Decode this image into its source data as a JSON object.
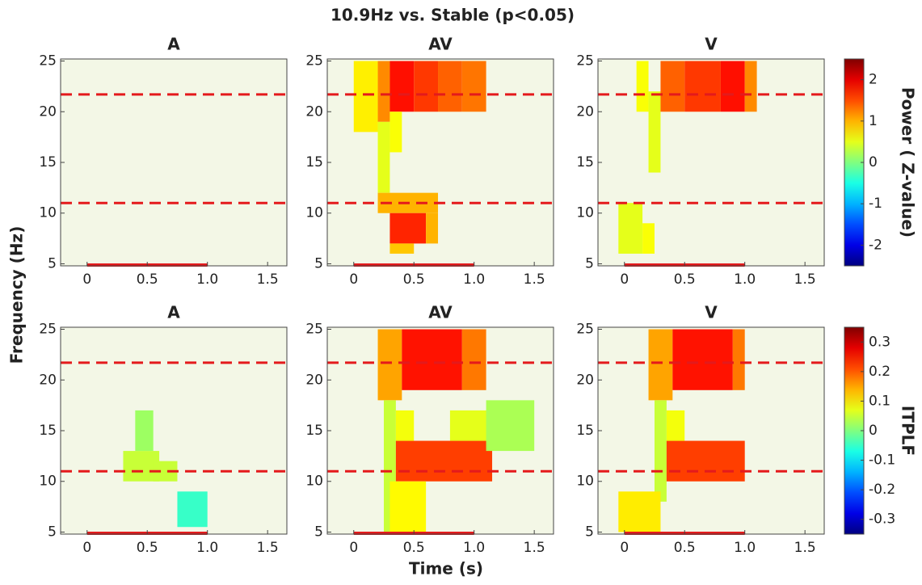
{
  "chart_data": {
    "type": "heatmap",
    "title": "10.9Hz vs. Stable (p<0.05)",
    "xlabel": "Time (s)",
    "ylabel": "Frequency (Hz)",
    "xlim": [
      -0.22,
      1.66
    ],
    "ylim": [
      4.8,
      25.2
    ],
    "xticks": [
      0,
      0.5,
      {
        "value": 1,
        "label": "1.0"
      },
      1.5
    ],
    "yticks": [
      5,
      10,
      15,
      20,
      25
    ],
    "reference_lines": [
      21.7,
      11
    ],
    "stimulus": [
      0,
      1
    ],
    "rows": [
      {
        "colorbar": {
          "label": "Power ( Z-value)",
          "lim": [
            -2.5,
            2.5
          ],
          "ticks": [
            -2,
            -1,
            0,
            1,
            2
          ]
        },
        "panels": [
          {
            "title": "A",
            "cells": []
          },
          {
            "title": "AV",
            "cells": [
              [
                0,
                0.2,
                18,
                25,
                0.7
              ],
              [
                0.2,
                0.3,
                19,
                25,
                1.2
              ],
              [
                0.3,
                0.5,
                20,
                25,
                1.8
              ],
              [
                0.5,
                0.7,
                20,
                25,
                1.6
              ],
              [
                0.7,
                0.9,
                20,
                25,
                1.4
              ],
              [
                0.9,
                1.1,
                20,
                25,
                1.3
              ],
              [
                0.2,
                0.3,
                12,
                19,
                0.5
              ],
              [
                0.3,
                0.4,
                16,
                20,
                0.6
              ],
              [
                0.2,
                0.7,
                10,
                12,
                1.0
              ],
              [
                0.3,
                0.6,
                7,
                10,
                1.7
              ],
              [
                0.6,
                0.7,
                7,
                10,
                1.0
              ],
              [
                0.3,
                0.5,
                6,
                7,
                0.9
              ]
            ]
          },
          {
            "title": "V",
            "cells": [
              [
                0.1,
                0.2,
                20,
                25,
                0.6
              ],
              [
                0.2,
                0.3,
                14,
                22,
                0.5
              ],
              [
                0.3,
                0.5,
                20,
                25,
                1.4
              ],
              [
                0.5,
                0.8,
                20,
                25,
                1.6
              ],
              [
                0.8,
                1.0,
                20,
                25,
                1.8
              ],
              [
                1.0,
                1.1,
                20,
                25,
                1.2
              ],
              [
                -0.05,
                0.15,
                6,
                11,
                0.5
              ],
              [
                0.15,
                0.25,
                6,
                9,
                0.6
              ]
            ]
          }
        ]
      },
      {
        "colorbar": {
          "label": "ITPLF",
          "lim": [
            -0.35,
            0.35
          ],
          "ticks": [
            -0.3,
            -0.2,
            -0.1,
            0,
            0.1,
            0.2,
            0.3
          ]
        },
        "panels": [
          {
            "title": "A",
            "cells": [
              [
                0.3,
                0.6,
                10,
                13,
                0.05
              ],
              [
                0.4,
                0.55,
                13,
                17,
                0.02
              ],
              [
                0.55,
                0.75,
                10,
                12,
                0.05
              ],
              [
                0.75,
                1.0,
                5.5,
                9,
                -0.05
              ]
            ]
          },
          {
            "title": "AV",
            "cells": [
              [
                0.2,
                0.4,
                18,
                25,
                0.15
              ],
              [
                0.4,
                0.9,
                19,
                25,
                0.25
              ],
              [
                0.9,
                1.1,
                19,
                25,
                0.18
              ],
              [
                0.25,
                0.35,
                5,
                18,
                0.05
              ],
              [
                0.35,
                1.15,
                10,
                14,
                0.22
              ],
              [
                0.35,
                0.5,
                14,
                17,
                0.08
              ],
              [
                0.8,
                1.2,
                14,
                17,
                0.07
              ],
              [
                1.1,
                1.5,
                13,
                18,
                0.03
              ],
              [
                0.3,
                0.6,
                5,
                10,
                0.09
              ]
            ]
          },
          {
            "title": "V",
            "cells": [
              [
                0.2,
                0.4,
                18,
                25,
                0.15
              ],
              [
                0.4,
                0.9,
                19,
                25,
                0.25
              ],
              [
                0.9,
                1.0,
                19,
                25,
                0.18
              ],
              [
                0.25,
                0.35,
                8,
                18,
                0.05
              ],
              [
                0.35,
                1.0,
                10,
                14,
                0.22
              ],
              [
                0.35,
                0.5,
                14,
                17,
                0.08
              ],
              [
                -0.05,
                0.3,
                5,
                9,
                0.1
              ]
            ]
          }
        ]
      }
    ]
  }
}
